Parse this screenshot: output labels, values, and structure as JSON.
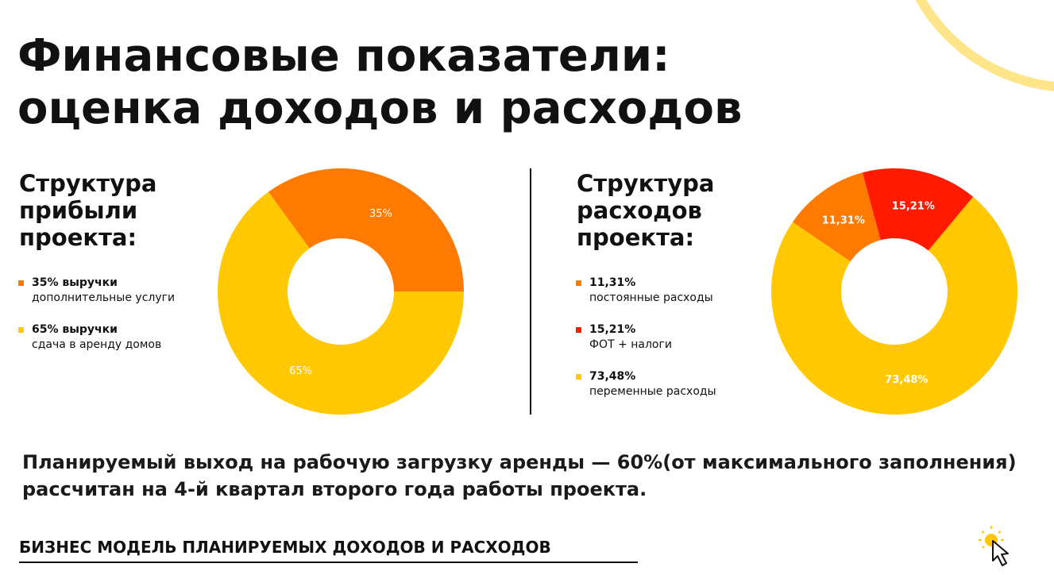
{
  "title_line1": "Финансовые показатели:",
  "title_line2": "оценка доходов и расходов",
  "colors": {
    "orange": "#ff7a00",
    "red": "#ff1a00",
    "yellow": "#ffc800",
    "deco": "#ffe58a"
  },
  "left": {
    "heading": [
      "Структура",
      "прибыли",
      "проекта:"
    ],
    "legend": [
      {
        "value": "35% выручки",
        "label": "дополнительные услуги",
        "color": "#ff7a00"
      },
      {
        "value": "65% выручки",
        "label": "сдача в аренду домов",
        "color": "#ffc800"
      }
    ]
  },
  "right": {
    "heading": [
      "Структура",
      "расходов",
      "проекта:"
    ],
    "legend": [
      {
        "value": "11,31%",
        "label": "постоянные расходы",
        "color": "#ff7a00"
      },
      {
        "value": "15,21%",
        "label": "ФОТ + налоги",
        "color": "#ff1a00"
      },
      {
        "value": "73,48%",
        "label": "переменные расходы",
        "color": "#ffc800"
      }
    ]
  },
  "chart_data": [
    {
      "type": "pie",
      "donut": true,
      "title": "Структура прибыли проекта:",
      "categories": [
        "дополнительные услуги",
        "сдача в аренду домов"
      ],
      "values": [
        35,
        65
      ],
      "labels": [
        "35%",
        "65%"
      ],
      "colors": [
        "#ff7a00",
        "#ffc800"
      ]
    },
    {
      "type": "pie",
      "donut": true,
      "title": "Структура расходов проекта:",
      "categories": [
        "постоянные расходы",
        "ФОТ + налоги",
        "переменные расходы"
      ],
      "values": [
        11.31,
        15.21,
        73.48
      ],
      "labels": [
        "11,31%",
        "15,21%",
        "73,48%"
      ],
      "colors": [
        "#ff7a00",
        "#ff1a00",
        "#ffc800"
      ]
    }
  ],
  "note": "Планируемый выход на рабочую загрузку аренды — 60%(от максимального заполнения) рассчитан на 4-й квартал второго года работы проекта.",
  "footer": "БИЗНЕС МОДЕЛЬ ПЛАНИРУЕМЫХ ДОХОДОВ И РАСХОДОВ"
}
